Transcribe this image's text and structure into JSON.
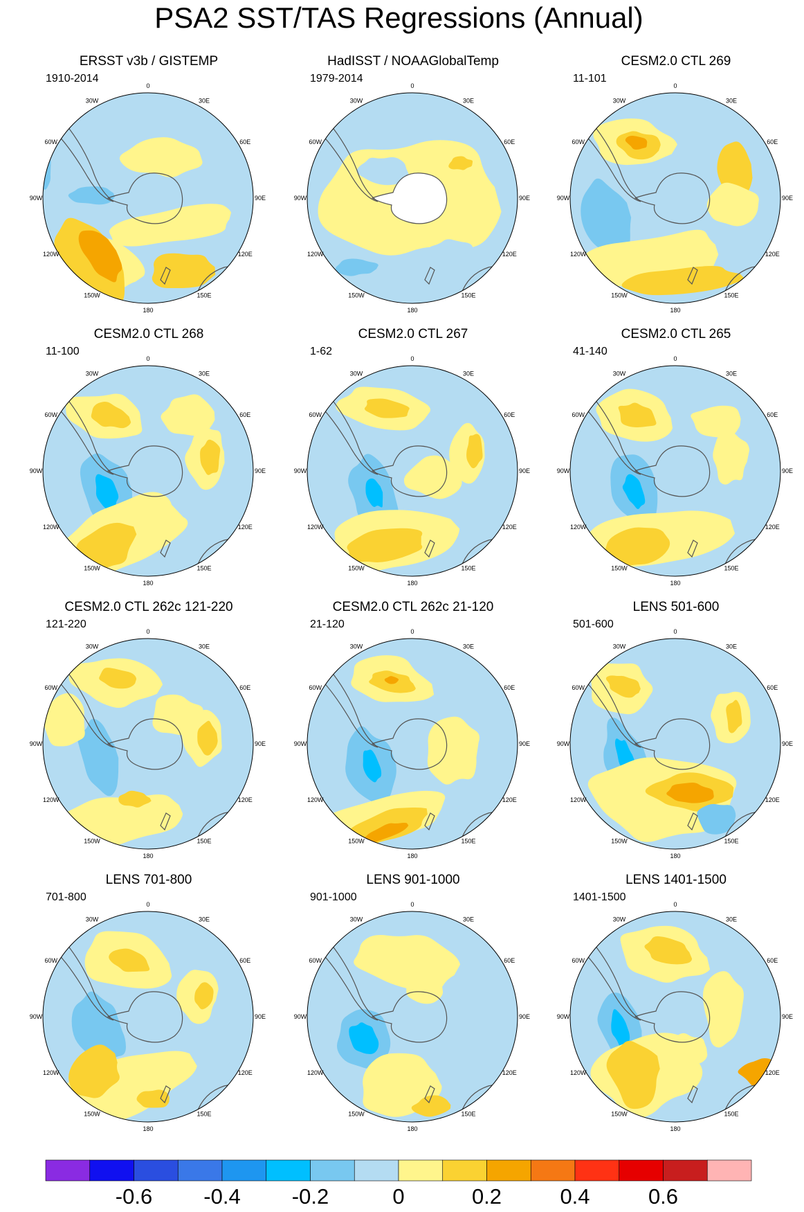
{
  "title": "PSA2 SST/TAS Regressions (Annual)",
  "panels": [
    {
      "title": "ERSST v3b / GISTEMP",
      "period": "1910-2014"
    },
    {
      "title": "HadISST / NOAAGlobalTemp",
      "period": "1979-2014"
    },
    {
      "title": "CESM2.0 CTL 269",
      "period": "11-101"
    },
    {
      "title": "CESM2.0 CTL 268",
      "period": "11-100"
    },
    {
      "title": "CESM2.0 CTL 267",
      "period": "1-62"
    },
    {
      "title": "CESM2.0 CTL 265",
      "period": "41-140"
    },
    {
      "title": "CESM2.0 CTL 262c 121-220",
      "period": "121-220"
    },
    {
      "title": "CESM2.0 CTL 262c 21-120",
      "period": "21-120"
    },
    {
      "title": "LENS 501-600",
      "period": "501-600"
    },
    {
      "title": "LENS 701-800",
      "period": "701-800"
    },
    {
      "title": "LENS 901-1000",
      "period": "901-1000"
    },
    {
      "title": "LENS 1401-1500",
      "period": "1401-1500"
    }
  ],
  "longitude_labels": [
    "0",
    "30E",
    "60E",
    "90E",
    "120E",
    "150E",
    "180",
    "150W",
    "120W",
    "90W",
    "60W",
    "30W"
  ],
  "colorbar": {
    "colors": [
      "#8a2be2",
      "#1010f0",
      "#2a4ee0",
      "#3a78e8",
      "#1e96f0",
      "#00bfff",
      "#78c8f0",
      "#b4dcf2",
      "#fff58c",
      "#fad232",
      "#f5a500",
      "#f57814",
      "#ff3214",
      "#e60000",
      "#c81e1e",
      "#ffb4b4"
    ],
    "tick_labels": [
      "-0.6",
      "-0.4",
      "-0.2",
      "0",
      "0.2",
      "0.4",
      "0.6"
    ]
  }
}
